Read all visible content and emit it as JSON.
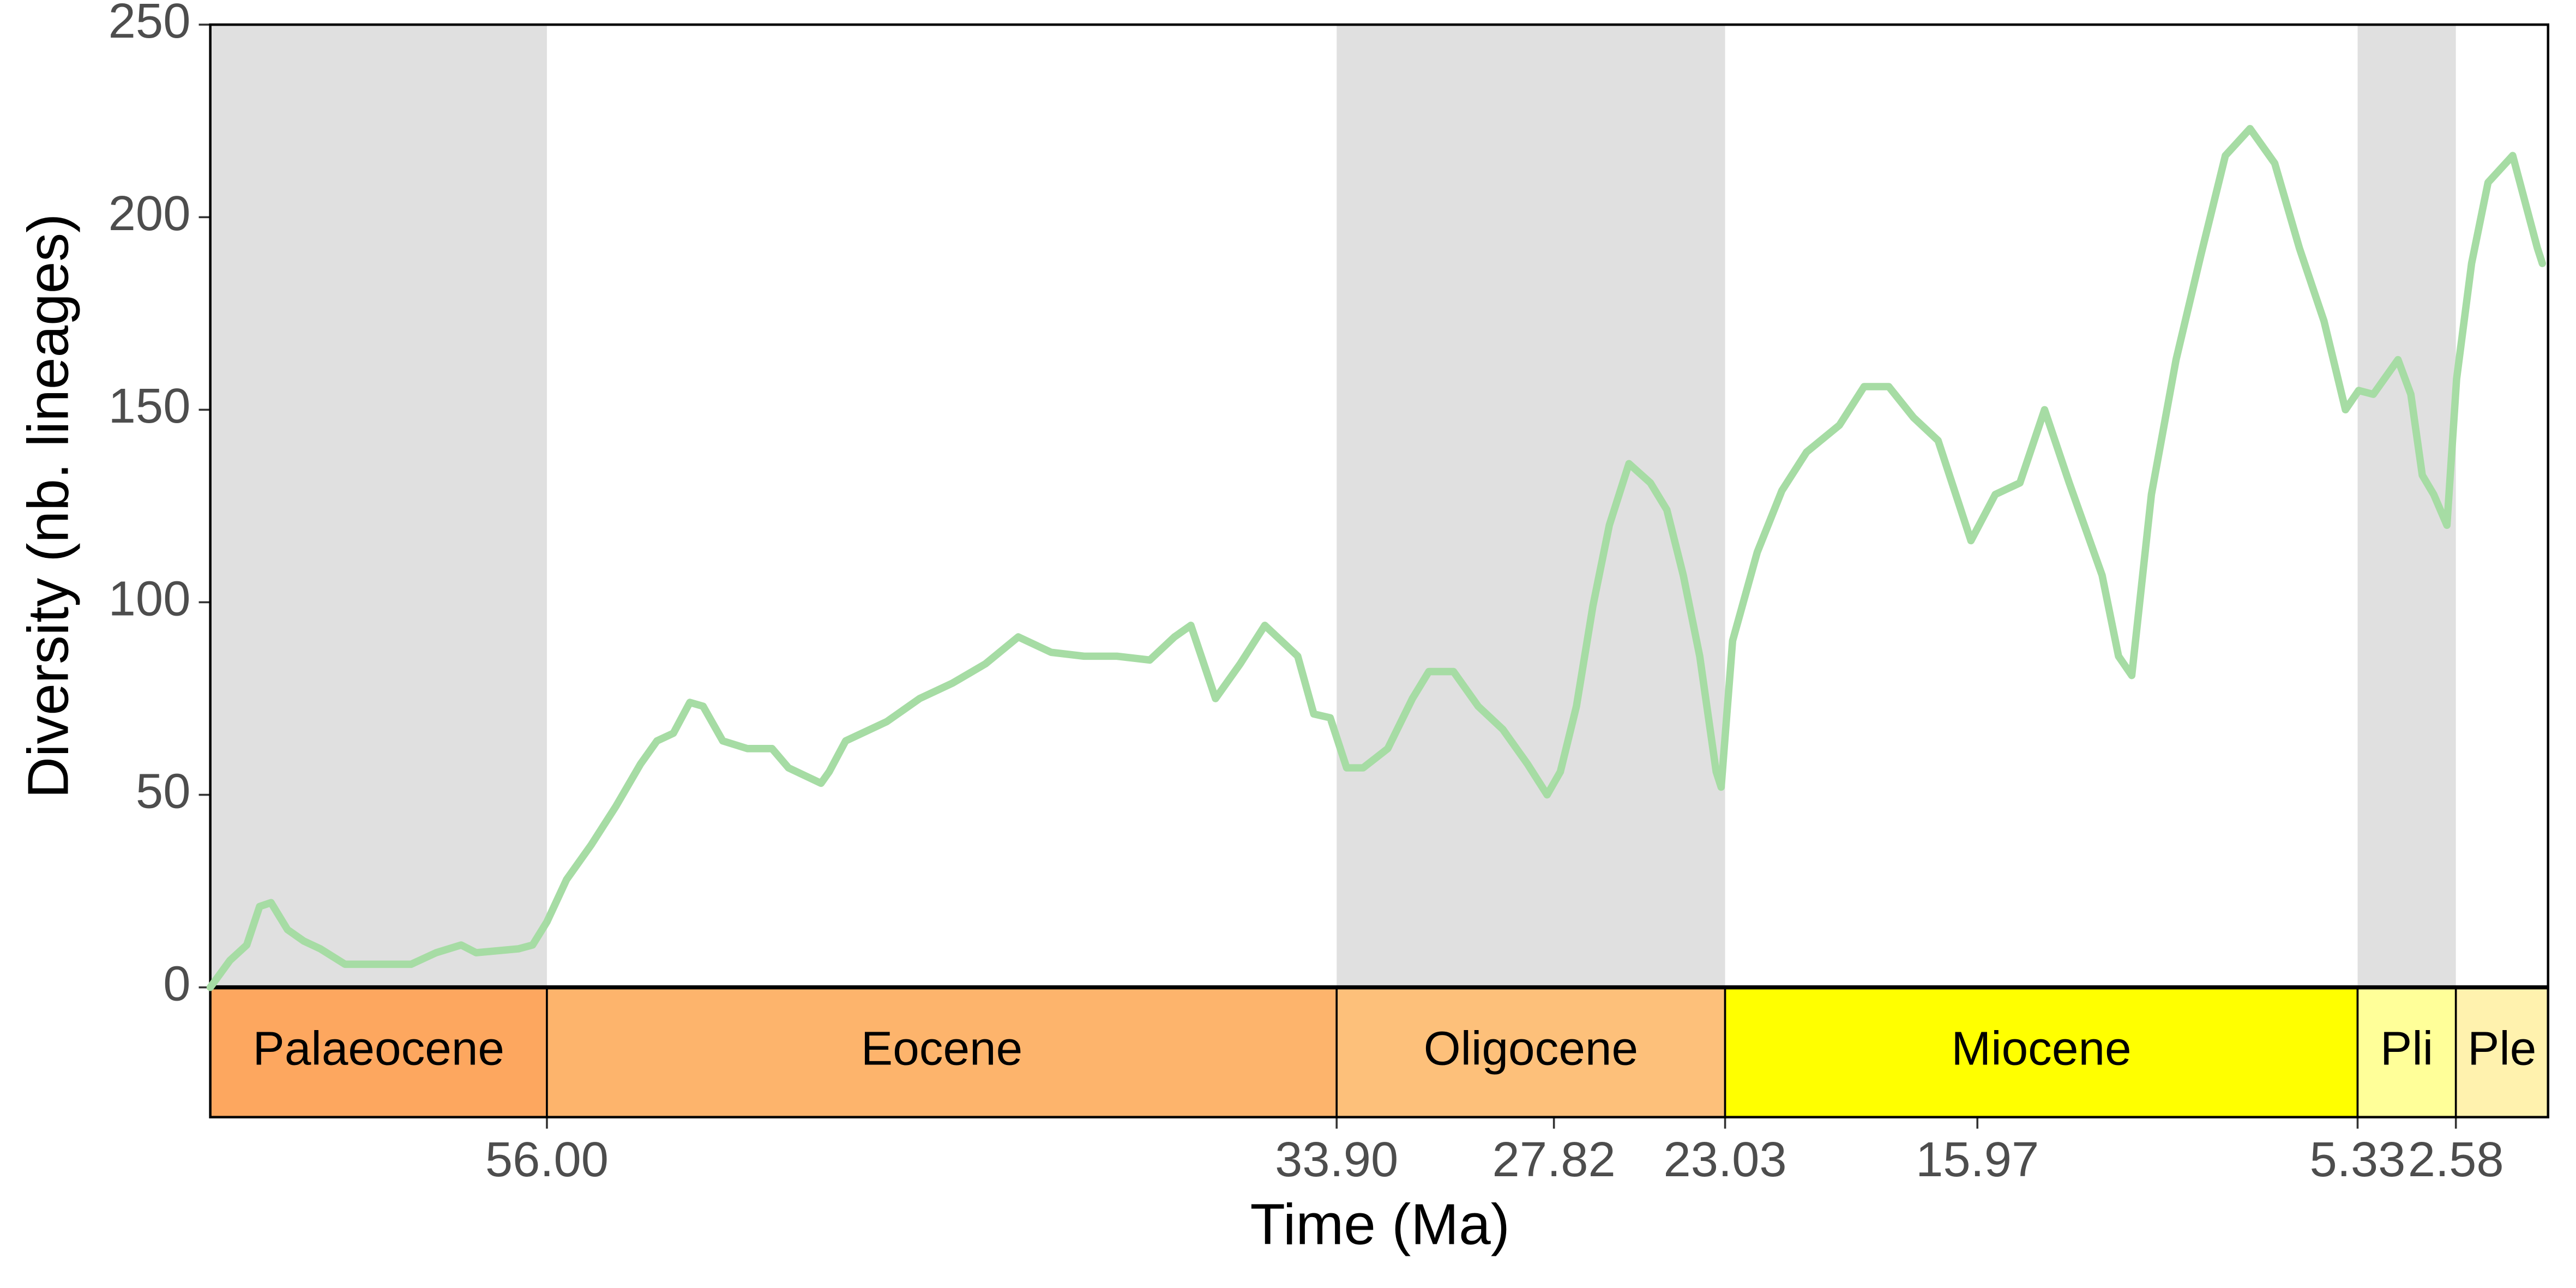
{
  "chart_data": {
    "type": "line",
    "x_label": "Time (Ma)",
    "y_label": "Diversity (nb. lineages)",
    "color": "#a6dca4",
    "xlim": [
      65.42,
      0
    ],
    "ylim": [
      0,
      250
    ],
    "yticks": [
      0,
      50,
      100,
      150,
      200,
      250
    ],
    "xticks": [
      {
        "value": 56,
        "label": "56.00"
      },
      {
        "value": 33.9,
        "label": "33.90"
      },
      27.82,
      23.03,
      15.97,
      5.33,
      2.58
    ],
    "epochs": [
      {
        "name": "Palaeocene",
        "start": 66,
        "end": 56,
        "color": "#fda75f",
        "shaded": true
      },
      {
        "name": "Eocene",
        "start": 56,
        "end": 33.9,
        "color": "#fdb46c",
        "shaded": false
      },
      {
        "name": "Oligocene",
        "start": 33.9,
        "end": 23.03,
        "color": "#fdc07a",
        "shaded": true
      },
      {
        "name": "Miocene",
        "start": 23.03,
        "end": 5.33,
        "color": "#ffff00",
        "shaded": false
      },
      {
        "name": "Pli",
        "start": 5.33,
        "end": 2.58,
        "color": "#ffff99",
        "shaded": true
      },
      {
        "name": "Ple",
        "start": 2.58,
        "end": 0,
        "color": "#fff2ae",
        "shaded": false
      }
    ],
    "x": [
      65.42,
      64.87,
      64.4,
      64.04,
      63.72,
      63.26,
      62.8,
      62.34,
      61.65,
      59.8,
      59.1,
      58.4,
      57.98,
      56.8,
      56.4,
      56,
      55.45,
      54.76,
      54.07,
      53.38,
      52.92,
      52.46,
      52,
      51.63,
      51.08,
      50.39,
      49.7,
      49.24,
      48.33,
      48.1,
      47.64,
      46.49,
      45.57,
      44.65,
      43.73,
      42.81,
      41.89,
      40.97,
      40.05,
      39.13,
      38.44,
      37.98,
      37.29,
      36.6,
      35.91,
      34.99,
      34.54,
      34.08,
      33.62,
      33.16,
      32.47,
      31.78,
      31.32,
      30.63,
      29.94,
      29.25,
      28.56,
      28.01,
      27.64,
      27.19,
      26.73,
      26.27,
      25.72,
      25.12,
      24.66,
      24.2,
      23.74,
      23.28,
      23.14,
      22.82,
      22.13,
      21.44,
      20.75,
      19.83,
      19.14,
      18.45,
      17.76,
      17.07,
      16.15,
      15.47,
      14.78,
      14.09,
      13.4,
      12.48,
      12.02,
      11.65,
      11.1,
      10.41,
      9.72,
      9.03,
      8.34,
      7.65,
      6.96,
      6.27,
      5.67,
      5.3,
      4.89,
      4.2,
      3.84,
      3.52,
      3.2,
      2.83,
      2.56,
      2.14,
      1.68,
      0.99,
      0.3,
      0.16
    ],
    "values": [
      0,
      7,
      11,
      21,
      22,
      15,
      12,
      10,
      6,
      6,
      9,
      11,
      9,
      10,
      11,
      17,
      28,
      37,
      47,
      58,
      64,
      66,
      74,
      73,
      64,
      62,
      62,
      57,
      53,
      56,
      64,
      69,
      75,
      79,
      84,
      91,
      87,
      86,
      86,
      85,
      91,
      94,
      75,
      84,
      94,
      86,
      71,
      70,
      57,
      57,
      62,
      75,
      82,
      82,
      73,
      67,
      58,
      50,
      56,
      73,
      99,
      120,
      136,
      131,
      124,
      107,
      86,
      56,
      52,
      90,
      113,
      129,
      139,
      146,
      156,
      156,
      148,
      142,
      116,
      128,
      131,
      150,
      131,
      107,
      86,
      81,
      128,
      163,
      190,
      216,
      223,
      214,
      192,
      173,
      150,
      155,
      154,
      163,
      154,
      133,
      128,
      120,
      158,
      188,
      209,
      216,
      192,
      188
    ]
  }
}
